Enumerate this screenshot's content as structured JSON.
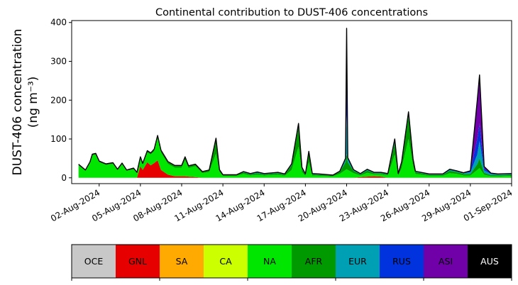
{
  "chart_data": {
    "type": "area",
    "stacked": true,
    "title": "Continental contribution to DUST-406 concentrations",
    "ylabel_line1": "DUST-406 concentration",
    "ylabel_line2": "(ng m⁻³)",
    "xlabel": "",
    "xlim": [
      "2024-07-31",
      "2024-09-01"
    ],
    "ylim": [
      -15,
      405
    ],
    "yticks": [
      0,
      100,
      200,
      300,
      400
    ],
    "xticks": [
      "2024-08-02",
      "2024-08-05",
      "2024-08-08",
      "2024-08-11",
      "2024-08-14",
      "2024-08-17",
      "2024-08-20",
      "2024-08-23",
      "2024-08-26",
      "2024-08-29",
      "2024-09-01"
    ],
    "xtick_labels": [
      "02-Aug-2024",
      "05-Aug-2024",
      "08-Aug-2024",
      "11-Aug-2024",
      "14-Aug-2024",
      "17-Aug-2024",
      "20-Aug-2024",
      "23-Aug-2024",
      "26-Aug-2024",
      "29-Aug-2024",
      "01-Sep-2024"
    ],
    "grid": false,
    "legend_placement": "bottom colorbar",
    "series": [
      {
        "name": "OCE",
        "color": "#c8c8c8"
      },
      {
        "name": "GNL",
        "color": "#e60000"
      },
      {
        "name": "SA",
        "color": "#ffaa00"
      },
      {
        "name": "CA",
        "color": "#ccff00"
      },
      {
        "name": "NA",
        "color": "#00e600"
      },
      {
        "name": "AFR",
        "color": "#009900"
      },
      {
        "name": "EUR",
        "color": "#00a0b4"
      },
      {
        "name": "RUS",
        "color": "#0033dd"
      },
      {
        "name": "ASI",
        "color": "#7000a8"
      },
      {
        "name": "AUS",
        "color": "#000000"
      }
    ],
    "points": [
      [
        "2024-07-31 12:00",
        {
          "NA": 32,
          "AFR": 3
        }
      ],
      [
        "2024-08-01 00:00",
        {
          "NA": 18,
          "AFR": 2
        }
      ],
      [
        "2024-08-01 08:00",
        {
          "NA": 38,
          "AFR": 3
        }
      ],
      [
        "2024-08-01 12:00",
        {
          "NA": 58,
          "AFR": 3
        }
      ],
      [
        "2024-08-01 18:00",
        {
          "NA": 60,
          "AFR": 3
        }
      ],
      [
        "2024-08-02 00:00",
        {
          "NA": 40,
          "AFR": 3
        }
      ],
      [
        "2024-08-02 12:00",
        {
          "NA": 33,
          "AFR": 3
        }
      ],
      [
        "2024-08-03 00:00",
        {
          "NA": 36,
          "AFR": 3
        }
      ],
      [
        "2024-08-03 08:00",
        {
          "NA": 20,
          "AFR": 2
        }
      ],
      [
        "2024-08-03 16:00",
        {
          "NA": 35,
          "AFR": 3
        }
      ],
      [
        "2024-08-04 00:00",
        {
          "NA": 18,
          "AFR": 2
        }
      ],
      [
        "2024-08-04 12:00",
        {
          "NA": 22,
          "AFR": 3
        }
      ],
      [
        "2024-08-04 18:00",
        {
          "NA": 12,
          "AFR": 2
        }
      ],
      [
        "2024-08-05 00:00",
        {
          "GNL": 30,
          "NA": 20,
          "AFR": 4
        }
      ],
      [
        "2024-08-05 04:00",
        {
          "GNL": 20,
          "NA": 14,
          "AFR": 3
        }
      ],
      [
        "2024-08-05 12:00",
        {
          "GNL": 40,
          "NA": 25,
          "AFR": 5
        }
      ],
      [
        "2024-08-05 18:00",
        {
          "GNL": 32,
          "NA": 28,
          "AFR": 4
        }
      ],
      [
        "2024-08-06 00:00",
        {
          "GNL": 38,
          "NA": 30,
          "AFR": 6
        }
      ],
      [
        "2024-08-06 06:00",
        {
          "GNL": 45,
          "NA": 60,
          "AFR": 4
        }
      ],
      [
        "2024-08-06 12:00",
        {
          "GNL": 20,
          "NA": 45,
          "AFR": 6
        }
      ],
      [
        "2024-08-07 00:00",
        {
          "GNL": 8,
          "NA": 28,
          "AFR": 6
        }
      ],
      [
        "2024-08-07 12:00",
        {
          "GNL": 4,
          "NA": 22,
          "AFR": 6
        }
      ],
      [
        "2024-08-08 00:00",
        {
          "GNL": 4,
          "NA": 22,
          "AFR": 6
        }
      ],
      [
        "2024-08-08 06:00",
        {
          "GNL": 4,
          "NA": 42,
          "AFR": 8
        }
      ],
      [
        "2024-08-08 12:00",
        {
          "GNL": 3,
          "NA": 22,
          "AFR": 6
        }
      ],
      [
        "2024-08-09 00:00",
        {
          "GNL": 2,
          "NA": 28,
          "AFR": 5
        }
      ],
      [
        "2024-08-09 12:00",
        {
          "NA": 12,
          "AFR": 4
        }
      ],
      [
        "2024-08-10 00:00",
        {
          "NA": 15,
          "AFR": 5
        }
      ],
      [
        "2024-08-10 12:00",
        {
          "NA": 62,
          "AFR": 40
        }
      ],
      [
        "2024-08-10 18:00",
        {
          "NA": 15,
          "AFR": 6
        }
      ],
      [
        "2024-08-11 00:00",
        {
          "NA": 5,
          "AFR": 3
        }
      ],
      [
        "2024-08-12 00:00",
        {
          "NA": 5,
          "AFR": 3
        }
      ],
      [
        "2024-08-12 12:00",
        {
          "NA": 10,
          "AFR": 4,
          "EUR": 2
        }
      ],
      [
        "2024-08-13 00:00",
        {
          "NA": 6,
          "AFR": 3,
          "EUR": 2
        }
      ],
      [
        "2024-08-13 12:00",
        {
          "NA": 8,
          "AFR": 4,
          "EUR": 3
        }
      ],
      [
        "2024-08-14 00:00",
        {
          "NA": 6,
          "AFR": 3,
          "EUR": 2
        }
      ],
      [
        "2024-08-15 00:00",
        {
          "NA": 8,
          "AFR": 4,
          "EUR": 2
        }
      ],
      [
        "2024-08-15 12:00",
        {
          "NA": 5,
          "AFR": 3,
          "EUR": 2
        }
      ],
      [
        "2024-08-16 00:00",
        {
          "NA": 20,
          "AFR": 12,
          "EUR": 4
        }
      ],
      [
        "2024-08-16 12:00",
        {
          "NA": 80,
          "AFR": 52,
          "EUR": 8
        }
      ],
      [
        "2024-08-16 18:00",
        {
          "NA": 15,
          "AFR": 8,
          "EUR": 4
        }
      ],
      [
        "2024-08-17 00:00",
        {
          "NA": 5,
          "AFR": 3,
          "EUR": 2
        }
      ],
      [
        "2024-08-17 06:00",
        {
          "NA": 40,
          "AFR": 24,
          "EUR": 4
        }
      ],
      [
        "2024-08-17 12:00",
        {
          "NA": 6,
          "AFR": 3,
          "EUR": 2
        }
      ],
      [
        "2024-08-18 00:00",
        {
          "NA": 5,
          "AFR": 3,
          "EUR": 2
        }
      ],
      [
        "2024-08-19 00:00",
        {
          "NA": 4,
          "AFR": 2,
          "EUR": 1
        }
      ],
      [
        "2024-08-19 12:00",
        {
          "NA": 10,
          "AFR": 5,
          "EUR": 2
        }
      ],
      [
        "2024-08-19 22:00",
        {
          "NA": 20,
          "AFR": 20,
          "EUR": 10
        }
      ],
      [
        "2024-08-20 00:00",
        {
          "NA": 22,
          "AFR": 40,
          "EUR": 100,
          "RUS": 160,
          "AUS": 63
        }
      ],
      [
        "2024-08-20 02:00",
        {
          "NA": 20,
          "AFR": 20,
          "EUR": 12
        }
      ],
      [
        "2024-08-20 12:00",
        {
          "NA": 12,
          "AFR": 6,
          "EUR": 3
        }
      ],
      [
        "2024-08-21 00:00",
        {
          "GNL": 2,
          "NA": 4,
          "AFR": 3,
          "EUR": 2
        }
      ],
      [
        "2024-08-21 12:00",
        {
          "GNL": 3,
          "NA": 10,
          "AFR": 6,
          "EUR": 3
        }
      ],
      [
        "2024-08-22 00:00",
        {
          "GNL": 4,
          "NA": 5,
          "AFR": 3,
          "EUR": 2
        }
      ],
      [
        "2024-08-22 12:00",
        {
          "GNL": 3,
          "NA": 6,
          "AFR": 3,
          "EUR": 2
        }
      ],
      [
        "2024-08-23 00:00",
        {
          "NA": 6,
          "AFR": 3,
          "EUR": 2
        }
      ],
      [
        "2024-08-23 12:00",
        {
          "NA": 60,
          "AFR": 30,
          "EUR": 10
        }
      ],
      [
        "2024-08-23 18:00",
        {
          "NA": 6,
          "AFR": 3,
          "EUR": 2
        }
      ],
      [
        "2024-08-24 00:00",
        {
          "NA": 25,
          "AFR": 12,
          "EUR": 4
        }
      ],
      [
        "2024-08-24 12:00",
        {
          "NA": 100,
          "AFR": 60,
          "EUR": 10
        }
      ],
      [
        "2024-08-24 20:00",
        {
          "NA": 30,
          "AFR": 15,
          "EUR": 4
        }
      ],
      [
        "2024-08-25 00:00",
        {
          "NA": 10,
          "AFR": 5,
          "EUR": 2
        }
      ],
      [
        "2024-08-26 00:00",
        {
          "NA": 5,
          "AFR": 3,
          "EUR": 2
        }
      ],
      [
        "2024-08-27 00:00",
        {
          "NA": 5,
          "AFR": 3,
          "EUR": 2
        }
      ],
      [
        "2024-08-27 12:00",
        {
          "NA": 12,
          "AFR": 6,
          "EUR": 4
        }
      ],
      [
        "2024-08-28 00:00",
        {
          "NA": 10,
          "AFR": 5,
          "EUR": 3
        }
      ],
      [
        "2024-08-28 12:00",
        {
          "NA": 6,
          "AFR": 4,
          "EUR": 3
        }
      ],
      [
        "2024-08-29 00:00",
        {
          "NA": 6,
          "AFR": 4,
          "EUR": 4,
          "RUS": 4
        }
      ],
      [
        "2024-08-29 12:00",
        {
          "NA": 20,
          "AFR": 15,
          "EUR": 25,
          "RUS": 40,
          "ASI": 100
        }
      ],
      [
        "2024-08-29 16:00",
        {
          "NA": 25,
          "AFR": 25,
          "EUR": 45,
          "RUS": 45,
          "ASI": 125
        }
      ],
      [
        "2024-08-30 00:00",
        {
          "NA": 8,
          "AFR": 5,
          "EUR": 6,
          "RUS": 5,
          "ASI": 5
        }
      ],
      [
        "2024-08-30 12:00",
        {
          "NA": 4,
          "AFR": 3,
          "EUR": 3,
          "RUS": 2
        }
      ],
      [
        "2024-08-31 00:00",
        {
          "NA": 4,
          "AFR": 3,
          "EUR": 2,
          "RUS": 1
        }
      ],
      [
        "2024-09-01 00:00",
        {
          "NA": 5,
          "AFR": 3,
          "EUR": 2,
          "RUS": 1
        }
      ]
    ]
  }
}
